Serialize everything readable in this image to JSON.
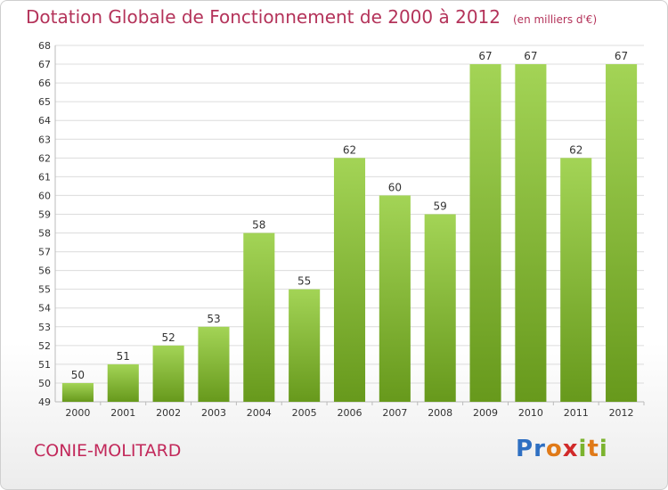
{
  "title": "Dotation Globale de Fonctionnement de 2000 à 2012",
  "unit": "(en milliers d'€)",
  "commune": "CONIE-MOLITARD",
  "brand": "Proxiti",
  "colors": {
    "title": "#b4335a",
    "bar_light": "#9ccd4a",
    "bar_dark": "#6a9e1e",
    "grid": "#dddddd",
    "axis_text": "#333333"
  },
  "chart_data": {
    "type": "bar",
    "categories": [
      "2000",
      "2001",
      "2002",
      "2003",
      "2004",
      "2005",
      "2006",
      "2007",
      "2008",
      "2009",
      "2010",
      "2011",
      "2012"
    ],
    "values": [
      50,
      51,
      52,
      53,
      58,
      55,
      62,
      60,
      59,
      67,
      67,
      62,
      67
    ],
    "ylim": [
      49,
      68
    ],
    "yticks": [
      49,
      50,
      51,
      52,
      53,
      54,
      55,
      56,
      57,
      58,
      59,
      60,
      61,
      62,
      63,
      64,
      65,
      66,
      67,
      68
    ],
    "grid": true,
    "data_labels": true
  }
}
